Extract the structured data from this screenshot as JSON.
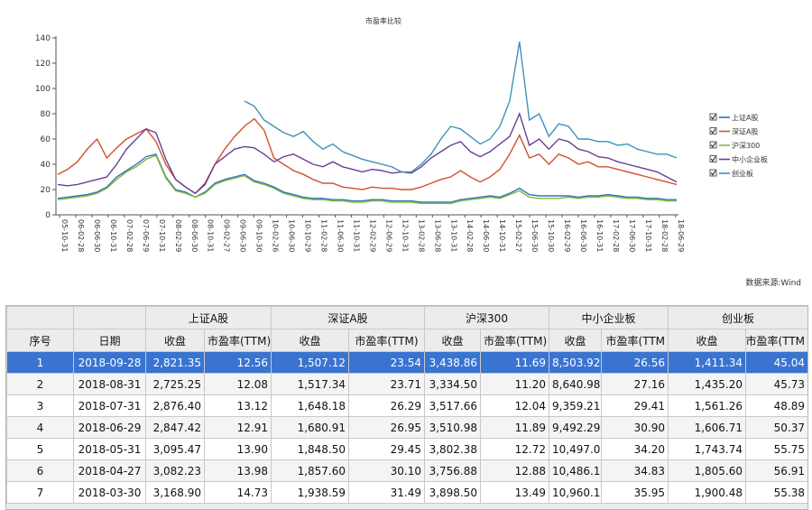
{
  "chart_data": {
    "type": "line",
    "title": "市盈率比较",
    "ylim": [
      0,
      140
    ],
    "yticks": [
      0,
      20,
      40,
      60,
      80,
      100,
      120,
      140
    ],
    "xtick_labels": [
      "05-10-31",
      "06-02-28",
      "06-06-30",
      "06-10-31",
      "07-02-28",
      "07-06-29",
      "07-10-31",
      "08-02-29",
      "08-06-30",
      "08-10-31",
      "09-02-27",
      "09-06-30",
      "09-10-30",
      "10-02-26",
      "10-06-30",
      "10-10-29",
      "11-02-28",
      "11-06-30",
      "11-10-31",
      "12-02-29",
      "12-06-29",
      "12-10-31",
      "13-02-28",
      "13-06-28",
      "13-10-31",
      "14-02-28",
      "14-06-30",
      "14-10-31",
      "15-02-27",
      "15-06-30",
      "15-10-30",
      "16-02-29",
      "16-06-30",
      "16-10-31",
      "17-02-28",
      "17-06-30",
      "17-10-31",
      "18-02-28",
      "18-06-29"
    ],
    "legend_position": "right",
    "series": [
      {
        "name": "上证A股",
        "color": "#2e76b6",
        "values": [
          13,
          14,
          15,
          16,
          18,
          22,
          30,
          35,
          40,
          46,
          48,
          30,
          20,
          18,
          14,
          18,
          25,
          28,
          30,
          32,
          27,
          25,
          22,
          18,
          16,
          14,
          13,
          13,
          12,
          12,
          11,
          11,
          12,
          12,
          11,
          11,
          11,
          10,
          10,
          10,
          10,
          12,
          13,
          14,
          15,
          14,
          17,
          21,
          16,
          15,
          15,
          15,
          15,
          14,
          15,
          15,
          16,
          15,
          14,
          14,
          13,
          13,
          12,
          12
        ]
      },
      {
        "name": "深证A股",
        "color": "#d2502e",
        "values": [
          32,
          36,
          42,
          52,
          60,
          45,
          53,
          60,
          64,
          68,
          58,
          40,
          28,
          22,
          17,
          25,
          40,
          52,
          62,
          70,
          76,
          67,
          45,
          40,
          35,
          32,
          28,
          25,
          25,
          22,
          21,
          20,
          22,
          21,
          21,
          20,
          20,
          22,
          25,
          28,
          30,
          35,
          30,
          26,
          30,
          36,
          48,
          63,
          45,
          48,
          40,
          48,
          45,
          40,
          42,
          38,
          38,
          36,
          34,
          32,
          30,
          28,
          26,
          24
        ]
      },
      {
        "name": "沪深300",
        "color": "#8ab53c",
        "values": [
          12,
          13,
          14,
          15,
          17,
          21,
          28,
          34,
          38,
          44,
          47,
          29,
          19,
          17,
          14,
          17,
          24,
          27,
          29,
          31,
          26,
          24,
          21,
          17,
          15,
          13,
          12,
          12,
          11,
          11,
          10,
          10,
          11,
          11,
          10,
          10,
          10,
          9,
          9,
          9,
          9,
          11,
          12,
          13,
          14,
          13,
          16,
          19,
          14,
          13,
          13,
          13,
          14,
          13,
          14,
          14,
          15,
          14,
          13,
          13,
          12,
          12,
          11,
          11
        ]
      },
      {
        "name": "中小企业板",
        "color": "#6b3e95",
        "values": [
          24,
          23,
          24,
          26,
          28,
          30,
          40,
          52,
          60,
          68,
          65,
          44,
          28,
          22,
          17,
          24,
          40,
          46,
          52,
          54,
          53,
          48,
          42,
          46,
          48,
          44,
          40,
          38,
          42,
          38,
          36,
          34,
          36,
          35,
          33,
          34,
          33,
          38,
          45,
          50,
          55,
          58,
          50,
          46,
          50,
          56,
          62,
          80,
          55,
          60,
          52,
          60,
          58,
          52,
          50,
          46,
          45,
          42,
          40,
          38,
          36,
          34,
          30,
          26
        ]
      },
      {
        "name": "创业板",
        "color": "#3f91ba",
        "values": [
          null,
          null,
          null,
          null,
          null,
          null,
          null,
          null,
          null,
          null,
          null,
          null,
          null,
          null,
          null,
          null,
          null,
          null,
          null,
          90,
          86,
          75,
          70,
          65,
          62,
          66,
          58,
          52,
          56,
          50,
          47,
          44,
          42,
          40,
          38,
          34,
          34,
          40,
          48,
          60,
          70,
          68,
          62,
          56,
          60,
          70,
          90,
          137,
          75,
          80,
          62,
          72,
          70,
          60,
          60,
          58,
          58,
          55,
          56,
          52,
          50,
          48,
          48,
          45
        ]
      }
    ]
  },
  "source_note": "数据来源:Wind",
  "table": {
    "group_headers": [
      "上证A股",
      "深证A股",
      "沪深300",
      "中小企业板",
      "创业板"
    ],
    "col_seq": "序号",
    "col_date": "日期",
    "col_close": "收盘",
    "col_pe": "市盈率(TTM)",
    "col_pe_cut": "市盈率(TTM",
    "rows": [
      {
        "seq": "1",
        "date": "2018-09-28",
        "v": [
          "2,821.35",
          "12.56",
          "1,507.12",
          "23.54",
          "3,438.86",
          "11.69",
          "8,503.92",
          "26.56",
          "1,411.34",
          "45.04"
        ]
      },
      {
        "seq": "2",
        "date": "2018-08-31",
        "v": [
          "2,725.25",
          "12.08",
          "1,517.34",
          "23.71",
          "3,334.50",
          "11.20",
          "8,640.98",
          "27.16",
          "1,435.20",
          "45.73"
        ]
      },
      {
        "seq": "3",
        "date": "2018-07-31",
        "v": [
          "2,876.40",
          "13.12",
          "1,648.18",
          "26.29",
          "3,517.66",
          "12.04",
          "9,359.21",
          "29.41",
          "1,561.26",
          "48.89"
        ]
      },
      {
        "seq": "4",
        "date": "2018-06-29",
        "v": [
          "2,847.42",
          "12.91",
          "1,680.91",
          "26.95",
          "3,510.98",
          "11.89",
          "9,492.29",
          "30.90",
          "1,606.71",
          "50.37"
        ]
      },
      {
        "seq": "5",
        "date": "2018-05-31",
        "v": [
          "3,095.47",
          "13.90",
          "1,848.50",
          "29.45",
          "3,802.38",
          "12.72",
          "10,497.03",
          "34.20",
          "1,743.74",
          "55.75"
        ]
      },
      {
        "seq": "6",
        "date": "2018-04-27",
        "v": [
          "3,082.23",
          "13.98",
          "1,857.60",
          "30.10",
          "3,756.88",
          "12.88",
          "10,486.15",
          "34.83",
          "1,805.60",
          "56.91"
        ]
      },
      {
        "seq": "7",
        "date": "2018-03-30",
        "v": [
          "3,168.90",
          "14.73",
          "1,938.59",
          "31.49",
          "3,898.50",
          "13.49",
          "10,960.15",
          "35.95",
          "1,900.48",
          "55.38"
        ]
      }
    ]
  }
}
